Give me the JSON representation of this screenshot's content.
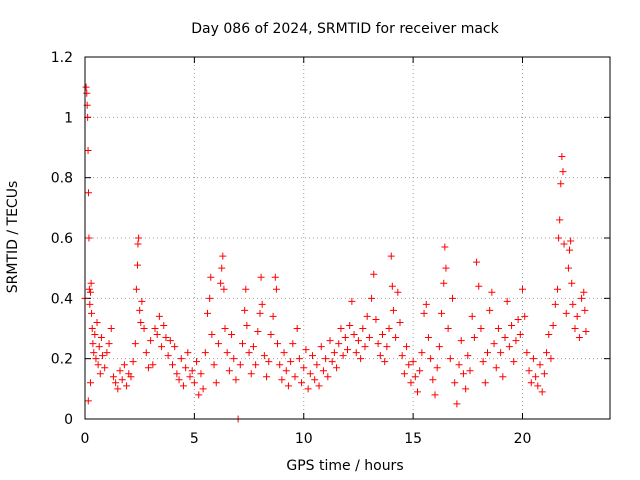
{
  "chart_data": {
    "type": "scatter",
    "title": "Day 086 of 2024, SRMTID for receiver mack",
    "xlabel": "GPS time / hours",
    "ylabel": "SRMTID / TECUs",
    "xlim": [
      0,
      24
    ],
    "ylim": [
      0,
      1.2
    ],
    "xticks": [
      0,
      5,
      10,
      15,
      20
    ],
    "xtick_labels": [
      "0",
      "5",
      "10",
      "15",
      "20"
    ],
    "yticks": [
      0,
      0.2,
      0.4,
      0.6,
      0.8,
      1.0,
      1.2
    ],
    "ytick_labels": [
      "0",
      "0.2",
      "0.4",
      "0.6",
      "0.8",
      "1",
      "1.2"
    ],
    "grid": true,
    "marker": "plus",
    "marker_color": "#ff0000",
    "series": [
      {
        "name": "SRMTID",
        "points": [
          [
            0.0,
            0.4
          ],
          [
            0.05,
            1.1
          ],
          [
            0.08,
            1.08
          ],
          [
            0.1,
            1.04
          ],
          [
            0.12,
            1.0
          ],
          [
            0.14,
            0.89
          ],
          [
            0.16,
            0.75
          ],
          [
            0.18,
            0.6
          ],
          [
            0.2,
            0.43
          ],
          [
            0.22,
            0.38
          ],
          [
            0.25,
            0.42
          ],
          [
            0.28,
            0.45
          ],
          [
            0.3,
            0.35
          ],
          [
            0.33,
            0.3
          ],
          [
            0.36,
            0.25
          ],
          [
            0.4,
            0.22
          ],
          [
            0.45,
            0.28
          ],
          [
            0.5,
            0.2
          ],
          [
            0.55,
            0.32
          ],
          [
            0.6,
            0.18
          ],
          [
            0.65,
            0.24
          ],
          [
            0.7,
            0.15
          ],
          [
            0.75,
            0.27
          ],
          [
            0.8,
            0.21
          ],
          [
            0.9,
            0.17
          ],
          [
            1.0,
            0.22
          ],
          [
            1.1,
            0.25
          ],
          [
            1.2,
            0.3
          ],
          [
            0.15,
            0.06
          ],
          [
            0.25,
            0.12
          ],
          [
            1.3,
            0.14
          ],
          [
            1.4,
            0.12
          ],
          [
            1.5,
            0.1
          ],
          [
            1.6,
            0.16
          ],
          [
            1.7,
            0.13
          ],
          [
            1.8,
            0.18
          ],
          [
            1.9,
            0.11
          ],
          [
            2.0,
            0.15
          ],
          [
            2.1,
            0.14
          ],
          [
            2.2,
            0.19
          ],
          [
            2.3,
            0.25
          ],
          [
            2.35,
            0.43
          ],
          [
            2.4,
            0.51
          ],
          [
            2.42,
            0.58
          ],
          [
            2.45,
            0.6
          ],
          [
            2.5,
            0.36
          ],
          [
            2.55,
            0.32
          ],
          [
            2.6,
            0.39
          ],
          [
            2.7,
            0.3
          ],
          [
            2.8,
            0.22
          ],
          [
            2.9,
            0.17
          ],
          [
            3.0,
            0.26
          ],
          [
            3.1,
            0.18
          ],
          [
            3.2,
            0.3
          ],
          [
            3.3,
            0.28
          ],
          [
            3.4,
            0.34
          ],
          [
            3.5,
            0.24
          ],
          [
            3.6,
            0.31
          ],
          [
            3.7,
            0.27
          ],
          [
            3.8,
            0.21
          ],
          [
            3.9,
            0.26
          ],
          [
            4.0,
            0.18
          ],
          [
            4.1,
            0.24
          ],
          [
            4.2,
            0.15
          ],
          [
            4.3,
            0.13
          ],
          [
            4.4,
            0.2
          ],
          [
            4.5,
            0.11
          ],
          [
            4.6,
            0.17
          ],
          [
            4.7,
            0.22
          ],
          [
            4.8,
            0.14
          ],
          [
            4.9,
            0.16
          ],
          [
            5.0,
            0.12
          ],
          [
            5.1,
            0.19
          ],
          [
            5.2,
            0.08
          ],
          [
            5.3,
            0.15
          ],
          [
            5.4,
            0.1
          ],
          [
            5.5,
            0.22
          ],
          [
            5.6,
            0.35
          ],
          [
            5.7,
            0.4
          ],
          [
            5.75,
            0.47
          ],
          [
            5.8,
            0.28
          ],
          [
            5.9,
            0.18
          ],
          [
            6.0,
            0.12
          ],
          [
            6.1,
            0.25
          ],
          [
            6.2,
            0.45
          ],
          [
            6.25,
            0.5
          ],
          [
            6.3,
            0.54
          ],
          [
            6.35,
            0.43
          ],
          [
            6.4,
            0.3
          ],
          [
            6.5,
            0.22
          ],
          [
            6.6,
            0.16
          ],
          [
            6.7,
            0.28
          ],
          [
            6.8,
            0.2
          ],
          [
            6.9,
            0.13
          ],
          [
            7.0,
            0.0
          ],
          [
            7.1,
            0.18
          ],
          [
            7.2,
            0.25
          ],
          [
            7.3,
            0.36
          ],
          [
            7.35,
            0.43
          ],
          [
            7.4,
            0.31
          ],
          [
            7.5,
            0.22
          ],
          [
            7.6,
            0.15
          ],
          [
            7.7,
            0.24
          ],
          [
            7.8,
            0.18
          ],
          [
            7.9,
            0.29
          ],
          [
            8.0,
            0.35
          ],
          [
            8.05,
            0.47
          ],
          [
            8.1,
            0.38
          ],
          [
            8.2,
            0.21
          ],
          [
            8.3,
            0.14
          ],
          [
            8.4,
            0.19
          ],
          [
            8.5,
            0.28
          ],
          [
            8.6,
            0.34
          ],
          [
            8.7,
            0.47
          ],
          [
            8.75,
            0.43
          ],
          [
            8.8,
            0.25
          ],
          [
            8.9,
            0.18
          ],
          [
            9.0,
            0.13
          ],
          [
            9.1,
            0.22
          ],
          [
            9.2,
            0.16
          ],
          [
            9.3,
            0.11
          ],
          [
            9.4,
            0.19
          ],
          [
            9.5,
            0.25
          ],
          [
            9.6,
            0.14
          ],
          [
            9.7,
            0.3
          ],
          [
            9.8,
            0.2
          ],
          [
            9.9,
            0.12
          ],
          [
            10.0,
            0.17
          ],
          [
            10.1,
            0.23
          ],
          [
            10.2,
            0.1
          ],
          [
            10.3,
            0.15
          ],
          [
            10.4,
            0.21
          ],
          [
            10.5,
            0.13
          ],
          [
            10.6,
            0.18
          ],
          [
            10.7,
            0.11
          ],
          [
            10.8,
            0.24
          ],
          [
            10.9,
            0.16
          ],
          [
            11.0,
            0.2
          ],
          [
            11.1,
            0.14
          ],
          [
            11.2,
            0.26
          ],
          [
            11.3,
            0.19
          ],
          [
            11.4,
            0.22
          ],
          [
            11.5,
            0.17
          ],
          [
            11.6,
            0.25
          ],
          [
            11.7,
            0.3
          ],
          [
            11.8,
            0.21
          ],
          [
            11.9,
            0.27
          ],
          [
            12.0,
            0.23
          ],
          [
            12.1,
            0.31
          ],
          [
            12.2,
            0.39
          ],
          [
            12.3,
            0.28
          ],
          [
            12.4,
            0.22
          ],
          [
            12.5,
            0.26
          ],
          [
            12.6,
            0.2
          ],
          [
            12.7,
            0.3
          ],
          [
            12.8,
            0.24
          ],
          [
            12.9,
            0.34
          ],
          [
            13.0,
            0.27
          ],
          [
            13.1,
            0.4
          ],
          [
            13.2,
            0.48
          ],
          [
            13.3,
            0.33
          ],
          [
            13.4,
            0.25
          ],
          [
            13.5,
            0.21
          ],
          [
            13.6,
            0.28
          ],
          [
            13.7,
            0.19
          ],
          [
            13.8,
            0.24
          ],
          [
            13.9,
            0.3
          ],
          [
            14.0,
            0.54
          ],
          [
            14.05,
            0.44
          ],
          [
            14.1,
            0.36
          ],
          [
            14.2,
            0.27
          ],
          [
            14.3,
            0.42
          ],
          [
            14.4,
            0.32
          ],
          [
            14.5,
            0.21
          ],
          [
            14.6,
            0.15
          ],
          [
            14.7,
            0.24
          ],
          [
            14.8,
            0.18
          ],
          [
            14.9,
            0.12
          ],
          [
            15.0,
            0.19
          ],
          [
            15.1,
            0.14
          ],
          [
            15.2,
            0.09
          ],
          [
            15.3,
            0.16
          ],
          [
            15.4,
            0.22
          ],
          [
            15.5,
            0.35
          ],
          [
            15.6,
            0.38
          ],
          [
            15.7,
            0.27
          ],
          [
            15.8,
            0.2
          ],
          [
            15.9,
            0.13
          ],
          [
            16.0,
            0.08
          ],
          [
            16.1,
            0.17
          ],
          [
            16.2,
            0.24
          ],
          [
            16.3,
            0.35
          ],
          [
            16.4,
            0.45
          ],
          [
            16.45,
            0.57
          ],
          [
            16.5,
            0.5
          ],
          [
            16.6,
            0.3
          ],
          [
            16.7,
            0.2
          ],
          [
            16.8,
            0.4
          ],
          [
            16.9,
            0.12
          ],
          [
            17.0,
            0.05
          ],
          [
            17.1,
            0.18
          ],
          [
            17.2,
            0.26
          ],
          [
            17.3,
            0.15
          ],
          [
            17.4,
            0.1
          ],
          [
            17.5,
            0.21
          ],
          [
            17.6,
            0.16
          ],
          [
            17.7,
            0.34
          ],
          [
            17.8,
            0.27
          ],
          [
            17.9,
            0.52
          ],
          [
            18.0,
            0.44
          ],
          [
            18.1,
            0.3
          ],
          [
            18.2,
            0.19
          ],
          [
            18.3,
            0.12
          ],
          [
            18.4,
            0.22
          ],
          [
            18.5,
            0.36
          ],
          [
            18.6,
            0.42
          ],
          [
            18.7,
            0.25
          ],
          [
            18.8,
            0.17
          ],
          [
            18.9,
            0.3
          ],
          [
            19.0,
            0.22
          ],
          [
            19.1,
            0.14
          ],
          [
            19.2,
            0.27
          ],
          [
            19.3,
            0.39
          ],
          [
            19.4,
            0.24
          ],
          [
            19.5,
            0.31
          ],
          [
            19.6,
            0.19
          ],
          [
            19.7,
            0.26
          ],
          [
            19.8,
            0.33
          ],
          [
            19.9,
            0.28
          ],
          [
            20.0,
            0.43
          ],
          [
            20.1,
            0.34
          ],
          [
            20.2,
            0.22
          ],
          [
            20.3,
            0.16
          ],
          [
            20.4,
            0.12
          ],
          [
            20.5,
            0.2
          ],
          [
            20.6,
            0.14
          ],
          [
            20.7,
            0.11
          ],
          [
            20.8,
            0.18
          ],
          [
            20.9,
            0.09
          ],
          [
            21.0,
            0.15
          ],
          [
            21.1,
            0.22
          ],
          [
            21.2,
            0.28
          ],
          [
            21.3,
            0.2
          ],
          [
            21.4,
            0.31
          ],
          [
            21.5,
            0.38
          ],
          [
            21.6,
            0.43
          ],
          [
            21.65,
            0.6
          ],
          [
            21.7,
            0.66
          ],
          [
            21.75,
            0.78
          ],
          [
            21.8,
            0.87
          ],
          [
            21.85,
            0.82
          ],
          [
            21.9,
            0.58
          ],
          [
            22.0,
            0.35
          ],
          [
            22.1,
            0.5
          ],
          [
            22.15,
            0.56
          ],
          [
            22.2,
            0.59
          ],
          [
            22.25,
            0.45
          ],
          [
            22.3,
            0.38
          ],
          [
            22.4,
            0.3
          ],
          [
            22.5,
            0.34
          ],
          [
            22.6,
            0.27
          ],
          [
            22.7,
            0.4
          ],
          [
            22.8,
            0.42
          ],
          [
            22.85,
            0.36
          ],
          [
            22.9,
            0.29
          ]
        ]
      }
    ]
  }
}
